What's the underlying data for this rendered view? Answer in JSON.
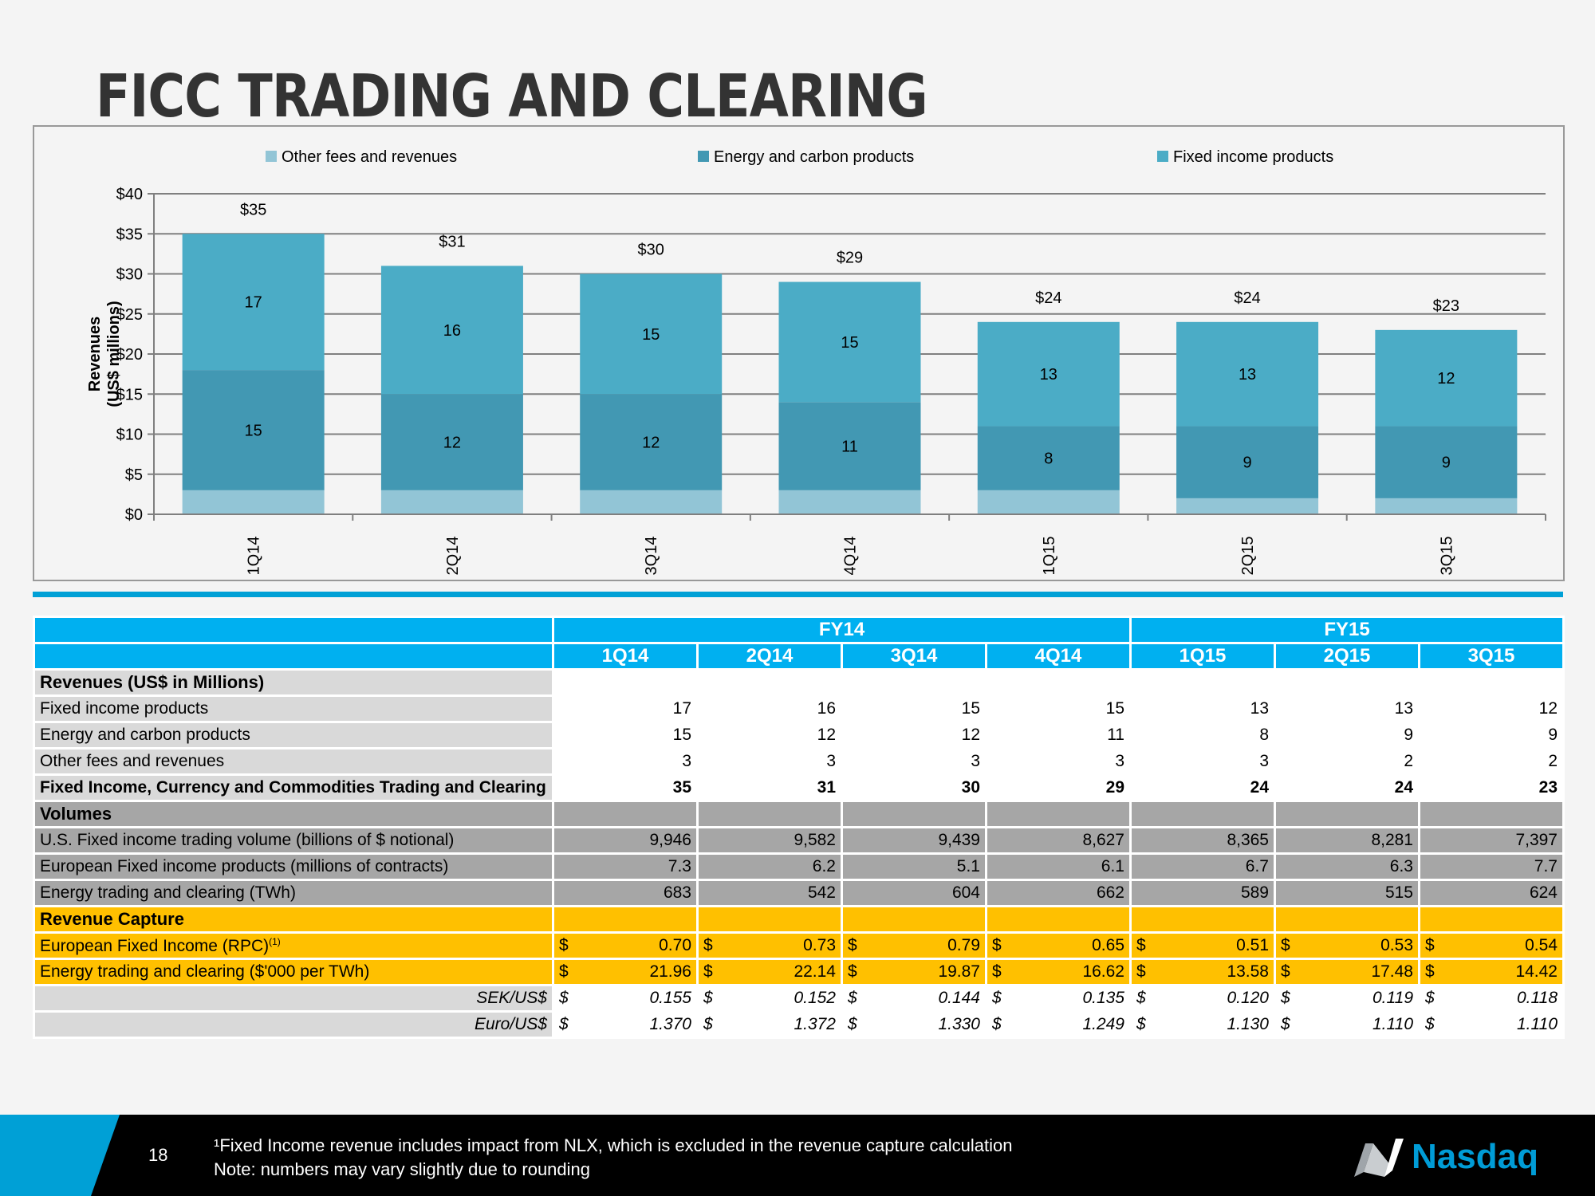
{
  "page": {
    "title": "FICC TRADING AND CLEARING",
    "page_number": "18",
    "footnote_line1": "¹Fixed Income revenue includes impact from NLX, which is excluded in the revenue capture calculation",
    "footnote_line2": "Note: numbers may vary slightly due to rounding",
    "logo_text": "Nasdaq"
  },
  "colors": {
    "other_fees": "#92c5d6",
    "energy": "#4298b3",
    "fixed_income": "#4bacc6",
    "header_blue": "#00b0f0",
    "capture_gold": "#ffc000",
    "brand_blue": "#009cd6"
  },
  "chart_data": {
    "type": "bar",
    "stacked": true,
    "categories": [
      "1Q14",
      "2Q14",
      "3Q14",
      "4Q14",
      "1Q15",
      "2Q15",
      "3Q15"
    ],
    "series": [
      {
        "name": "Other fees and revenues",
        "values": [
          3,
          3,
          3,
          3,
          3,
          2,
          2
        ]
      },
      {
        "name": "Energy and carbon products",
        "values": [
          15,
          12,
          12,
          11,
          8,
          9,
          9
        ]
      },
      {
        "name": "Fixed income products",
        "values": [
          17,
          16,
          15,
          15,
          13,
          13,
          12
        ]
      }
    ],
    "totals": [
      "$35",
      "$31",
      "$30",
      "$29",
      "$24",
      "$24",
      "$23"
    ],
    "ylabel": "Revenues\n(US$ millions)",
    "ylim": [
      0,
      40
    ],
    "yticks": [
      "$0",
      "$5",
      "$10",
      "$15",
      "$20",
      "$25",
      "$30",
      "$35",
      "$40"
    ],
    "grid": true,
    "legend": "top"
  },
  "table": {
    "fy_labels": [
      "FY14",
      "FY15"
    ],
    "quarters": [
      "1Q14",
      "2Q14",
      "3Q14",
      "4Q14",
      "1Q15",
      "2Q15",
      "3Q15"
    ],
    "revenues_header": "Revenues (US$ in Millions)",
    "revenue_rows": [
      {
        "label": "Fixed income products",
        "values": [
          "17",
          "16",
          "15",
          "15",
          "13",
          "13",
          "12"
        ]
      },
      {
        "label": "Energy and carbon products",
        "values": [
          "15",
          "12",
          "12",
          "11",
          "8",
          "9",
          "9"
        ]
      },
      {
        "label": "Other fees and revenues",
        "values": [
          "3",
          "3",
          "3",
          "3",
          "3",
          "2",
          "2"
        ]
      }
    ],
    "total_row": {
      "label": "Fixed Income, Currency and Commodities Trading and Clearing",
      "values": [
        "35",
        "31",
        "30",
        "29",
        "24",
        "24",
        "23"
      ]
    },
    "volumes_header": "Volumes",
    "volume_rows": [
      {
        "label": "U.S. Fixed income trading volume (billions of $ notional)",
        "values": [
          "9,946",
          "9,582",
          "9,439",
          "8,627",
          "8,365",
          "8,281",
          "7,397"
        ]
      },
      {
        "label": "European Fixed income products (millions of contracts)",
        "values": [
          "7.3",
          "6.2",
          "5.1",
          "6.1",
          "6.7",
          "6.3",
          "7.7"
        ]
      },
      {
        "label": "Energy trading and clearing (TWh)",
        "values": [
          "683",
          "542",
          "604",
          "662",
          "589",
          "515",
          "624"
        ]
      }
    ],
    "capture_header": "Revenue Capture",
    "capture_rows": [
      {
        "label": "European Fixed Income (RPC)",
        "label_sup": "(1)",
        "values": [
          "0.70",
          "0.73",
          "0.79",
          "0.65",
          "0.51",
          "0.53",
          "0.54"
        ]
      },
      {
        "label": "Energy trading and clearing ($'000 per TWh)",
        "label_sup": "",
        "values": [
          "21.96",
          "22.14",
          "19.87",
          "16.62",
          "13.58",
          "17.48",
          "14.42"
        ]
      }
    ],
    "fx_rows": [
      {
        "label": "SEK/US$",
        "values": [
          "0.155",
          "0.152",
          "0.144",
          "0.135",
          "0.120",
          "0.119",
          "0.118"
        ]
      },
      {
        "label": "Euro/US$",
        "values": [
          "1.370",
          "1.372",
          "1.330",
          "1.249",
          "1.130",
          "1.110",
          "1.110"
        ]
      }
    ],
    "currency_symbol": "$"
  }
}
